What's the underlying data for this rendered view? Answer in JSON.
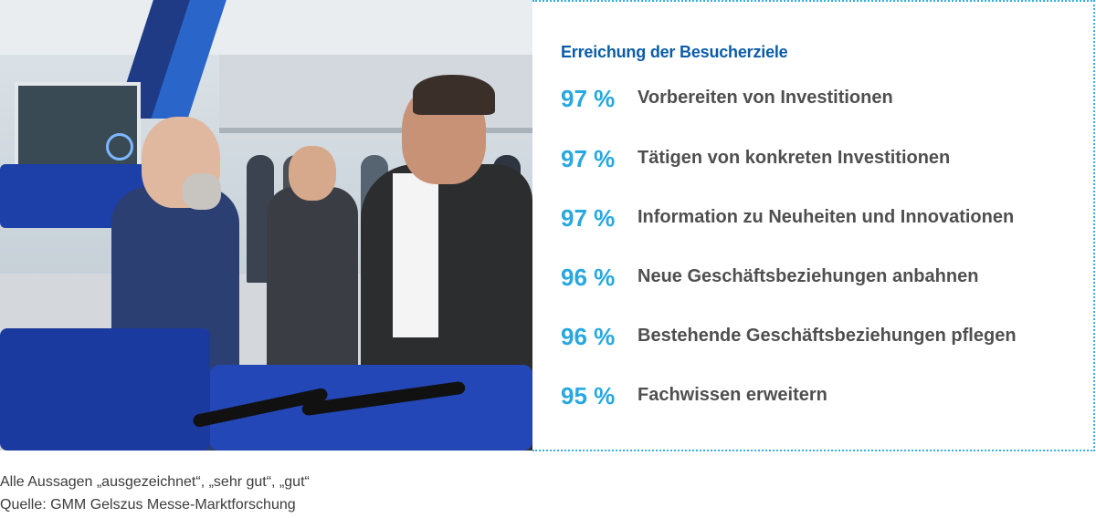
{
  "panel": {
    "title": "Erreichung der Besucherziele",
    "stats": [
      {
        "percent": "97 %",
        "label": "Vorbereiten von Investitionen"
      },
      {
        "percent": "97 %",
        "label": "Tätigen von konkreten Investitionen"
      },
      {
        "percent": "97 %",
        "label": "Information zu Neuheiten und Innovationen"
      },
      {
        "percent": "96 %",
        "label": "Neue Geschäftsbeziehungen anbahnen"
      },
      {
        "percent": "96 %",
        "label": "Bestehende Geschäftsbeziehungen pflegen"
      },
      {
        "percent": "95 %",
        "label": "Fachwissen erweitern"
      }
    ]
  },
  "footnotes": {
    "line1": "Alle Aussagen „ausgezeichnet“, „sehr gut“, „gut“",
    "line2": "Quelle: GMM Gelszus Messe-Marktforschung"
  },
  "colors": {
    "title": "#0a5ca8",
    "percent": "#27a8e0",
    "label": "#4f4f4f",
    "border": "#35b0e6"
  }
}
